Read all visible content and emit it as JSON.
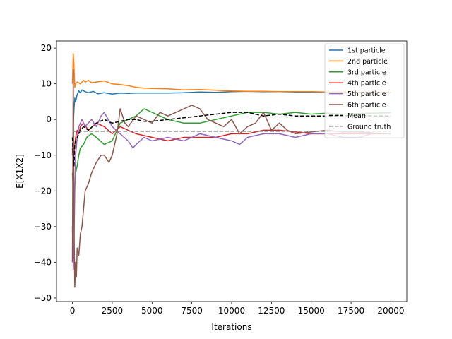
{
  "chart_data": {
    "type": "line",
    "xlabel": "Iterations",
    "ylabel": "E[X1X2]",
    "xlim": [
      -1000,
      21000
    ],
    "ylim": [
      -51,
      22
    ],
    "x_ticks": [
      0,
      2500,
      5000,
      7500,
      10000,
      12500,
      15000,
      17500,
      20000
    ],
    "y_ticks": [
      -50,
      -40,
      -30,
      -20,
      -10,
      0,
      10,
      20
    ],
    "grid": false,
    "legend_position": "top-right",
    "series": [
      {
        "name": "1st particle",
        "color": "#1f77b4",
        "style": "solid",
        "x": [
          0,
          50,
          100,
          150,
          200,
          300,
          400,
          500,
          600,
          800,
          1000,
          1300,
          1600,
          2000,
          2500,
          3000,
          3500,
          4000,
          5000,
          6000,
          7000,
          8000,
          9000,
          10000,
          11000,
          12000,
          13000,
          14000,
          15000,
          16000,
          17000,
          18000,
          19000,
          20000
        ],
        "y": [
          -10,
          -2,
          3,
          6,
          5,
          7,
          8,
          7.5,
          8.3,
          7.8,
          7.5,
          7.9,
          7.2,
          7.5,
          7.1,
          7.4,
          7.3,
          7.4,
          7.4,
          7.4,
          7.5,
          7.7,
          7.6,
          7.8,
          7.9,
          7.8,
          7.8,
          7.7,
          7.7,
          7.6,
          7.6,
          7.6,
          7.5,
          7.5
        ]
      },
      {
        "name": "2nd particle",
        "color": "#ff7f0e",
        "style": "solid",
        "x": [
          0,
          50,
          100,
          150,
          200,
          300,
          500,
          700,
          800,
          1000,
          1200,
          1500,
          2000,
          2500,
          3000,
          3500,
          4000,
          4500,
          5000,
          6000,
          7000,
          8000,
          9000,
          10000,
          11000,
          12000,
          13000,
          14000,
          15000,
          16000,
          17000,
          18000,
          19000,
          20000
        ],
        "y": [
          10,
          18.5,
          15,
          9,
          10,
          10.5,
          10,
          11,
          10.5,
          11,
          10.3,
          10.5,
          10.8,
          10,
          9.8,
          9.5,
          9,
          8.8,
          8.7,
          8.6,
          8.3,
          8.4,
          8.2,
          8,
          7.9,
          7.9,
          7.8,
          7.8,
          7.8,
          7.7,
          7.7,
          7.6,
          7.6,
          7.6
        ]
      },
      {
        "name": "3rd particle",
        "color": "#2ca02c",
        "style": "solid",
        "x": [
          0,
          50,
          100,
          150,
          200,
          300,
          400,
          500,
          700,
          900,
          1200,
          1500,
          2000,
          2500,
          3000,
          3500,
          4000,
          4500,
          5000,
          5500,
          6000,
          7000,
          8000,
          9000,
          10000,
          11000,
          12000,
          13000,
          14000,
          15000,
          16000,
          17000,
          18000,
          19000,
          20000
        ],
        "y": [
          -15,
          -20,
          -26,
          -18,
          -15,
          -13,
          -10,
          -8,
          -7,
          -5,
          -4,
          -5,
          -7,
          -6,
          -1,
          0,
          1,
          3,
          2,
          1,
          0,
          -1,
          -1,
          0,
          1,
          2,
          2,
          1.5,
          2,
          1.5,
          1.8,
          1.5,
          1.7,
          1.8,
          1.9
        ]
      },
      {
        "name": "4th particle",
        "color": "#d62728",
        "style": "solid",
        "x": [
          0,
          50,
          100,
          150,
          200,
          300,
          400,
          500,
          700,
          1000,
          1500,
          2000,
          2500,
          3000,
          3500,
          4000,
          5000,
          6000,
          7000,
          8000,
          9000,
          10000,
          11000,
          12000,
          13000,
          14000,
          15000,
          16000,
          17000,
          18000,
          19000,
          20000
        ],
        "y": [
          -8,
          -12,
          -10,
          -7,
          -5,
          -3,
          -4,
          -2,
          -1,
          -3,
          -1,
          -2,
          -4,
          -2,
          -3,
          -4,
          -5,
          -6,
          -5,
          -5,
          -5,
          -4,
          -4,
          -3,
          -3,
          -3.5,
          -4,
          -4,
          -4,
          -4,
          -4,
          -4
        ]
      },
      {
        "name": "5th particle",
        "color": "#9467bd",
        "style": "solid",
        "x": [
          0,
          50,
          100,
          150,
          200,
          300,
          400,
          600,
          800,
          1000,
          1200,
          1500,
          1800,
          2000,
          2500,
          3000,
          3500,
          3800,
          4000,
          4500,
          5000,
          6000,
          7000,
          8000,
          9000,
          10000,
          10500,
          11000,
          12000,
          13000,
          14000,
          15000,
          16000,
          17000,
          18000,
          18800
        ],
        "y": [
          -30,
          -42,
          -35,
          -20,
          -10,
          -5,
          -2,
          0,
          -2,
          -1,
          0,
          -2,
          1,
          2,
          -2,
          -4,
          -6,
          -8,
          -7,
          -5,
          -6,
          -5,
          -6,
          -4,
          -5,
          -6,
          -7,
          -5,
          -4,
          -4,
          -5,
          -4,
          -4,
          -5,
          -5,
          -4
        ]
      },
      {
        "name": "6th particle",
        "color": "#8c564b",
        "style": "solid",
        "x": [
          0,
          50,
          100,
          150,
          200,
          250,
          300,
          400,
          500,
          600,
          800,
          1000,
          1200,
          1500,
          1800,
          2000,
          2300,
          2500,
          2800,
          3000,
          3300,
          3500,
          4000,
          4500,
          5000,
          5500,
          6000,
          6500,
          7000,
          7500,
          8000,
          8500,
          9000,
          9500,
          10000,
          10500,
          11000,
          11500,
          12000,
          12500,
          13000,
          13500,
          14000,
          15000,
          16000,
          17000,
          18000,
          19000,
          20000
        ],
        "y": [
          -40,
          14,
          -30,
          -47,
          -40,
          -44,
          -36,
          -38,
          -32,
          -30,
          -20,
          -18,
          -15,
          -12,
          -10,
          -10,
          -12,
          -10,
          -4,
          3,
          -1,
          -2,
          1,
          0,
          -1,
          2,
          1,
          2,
          3,
          4,
          3,
          0,
          -1,
          -2,
          0,
          -4,
          -2,
          -1,
          2,
          -3,
          -1,
          -3,
          -4,
          -3.5,
          -3,
          -3.5,
          -3.5,
          -3.8,
          -4
        ]
      },
      {
        "name": "Mean",
        "color": "#000000",
        "style": "dashed",
        "x": [
          0,
          50,
          100,
          150,
          200,
          300,
          400,
          500,
          700,
          1000,
          1500,
          2000,
          2500,
          3000,
          3500,
          4000,
          4500,
          5000,
          6000,
          7000,
          8000,
          9000,
          10000,
          11000,
          12000,
          13000,
          14000,
          15000,
          16000,
          17000,
          18000,
          19000,
          20000
        ],
        "y": [
          -5,
          -10,
          -13,
          -7,
          -6,
          -5,
          -4,
          -3,
          -2,
          -3,
          -1,
          0,
          -1,
          -0.5,
          0,
          0,
          -0.5,
          -0.5,
          0,
          0.5,
          1,
          1.5,
          2,
          2,
          1,
          1.5,
          1,
          1,
          1,
          1,
          1.2,
          1,
          1
        ]
      },
      {
        "name": "Ground truth",
        "color": "#7f7f7f",
        "style": "dashed",
        "x": [
          0,
          20000
        ],
        "y": [
          -3.3,
          -3.3
        ]
      }
    ]
  }
}
